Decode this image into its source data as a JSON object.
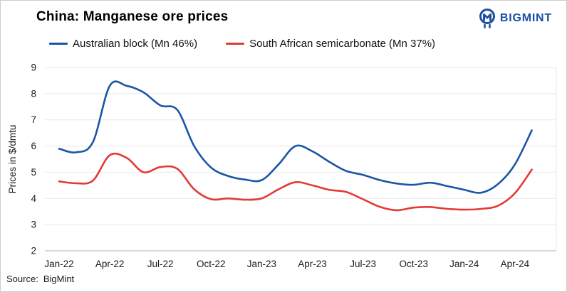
{
  "header": {
    "title": "China: Manganese ore prices",
    "logo_text": "BIGMINT"
  },
  "legend": [
    {
      "label": "Australian block (Mn 46%)",
      "color": "#1b56a4"
    },
    {
      "label": "South African semicarbonate (Mn 37%)",
      "color": "#e23b35"
    }
  ],
  "footer": {
    "source_label": "Source:",
    "source_value": "BigMint"
  },
  "colors": {
    "logo_blue": "#1b4fa3",
    "gridline": "#e9e9e9",
    "axis_line": "#b3b3b3",
    "tick_text": "#1a1a1a"
  },
  "chart_data": {
    "type": "line",
    "title": "China: Manganese ore prices",
    "xlabel": "",
    "ylabel": "Prices in $/dmtu",
    "ylim": [
      2,
      9
    ],
    "yticks": [
      2,
      3,
      4,
      5,
      6,
      7,
      8,
      9
    ],
    "grid": "horizontal",
    "legend_position": "top",
    "x": [
      "Jan-22",
      "Feb-22",
      "Mar-22",
      "Apr-22",
      "May-22",
      "Jun-22",
      "Jul-22",
      "Aug-22",
      "Sep-22",
      "Oct-22",
      "Nov-22",
      "Dec-22",
      "Jan-23",
      "Feb-23",
      "Mar-23",
      "Apr-23",
      "May-23",
      "Jun-23",
      "Jul-23",
      "Aug-23",
      "Sep-23",
      "Oct-23",
      "Nov-23",
      "Dec-23",
      "Jan-24",
      "Feb-24",
      "Mar-24",
      "Apr-24",
      "May-24"
    ],
    "xtick_labels": [
      "Jan-22",
      "Apr-22",
      "Jul-22",
      "Oct-22",
      "Jan-23",
      "Apr-23",
      "Jul-23",
      "Oct-23",
      "Jan-24",
      "Apr-24"
    ],
    "series": [
      {
        "name": "Australian block (Mn 46%)",
        "color": "#1b56a4",
        "values": [
          5.9,
          5.76,
          6.15,
          8.3,
          8.3,
          8.05,
          7.55,
          7.38,
          6.0,
          5.18,
          4.86,
          4.72,
          4.7,
          5.3,
          6.0,
          5.8,
          5.4,
          5.05,
          4.9,
          4.7,
          4.57,
          4.52,
          4.6,
          4.47,
          4.33,
          4.22,
          4.55,
          5.3,
          6.6
        ]
      },
      {
        "name": "South African semicarbonate (Mn 37%)",
        "color": "#e23b35",
        "values": [
          4.65,
          4.58,
          4.68,
          5.65,
          5.55,
          5.0,
          5.2,
          5.13,
          4.35,
          3.97,
          4.0,
          3.95,
          4.0,
          4.35,
          4.62,
          4.5,
          4.33,
          4.25,
          3.97,
          3.68,
          3.55,
          3.65,
          3.67,
          3.6,
          3.57,
          3.6,
          3.72,
          4.2,
          5.1
        ]
      }
    ]
  }
}
